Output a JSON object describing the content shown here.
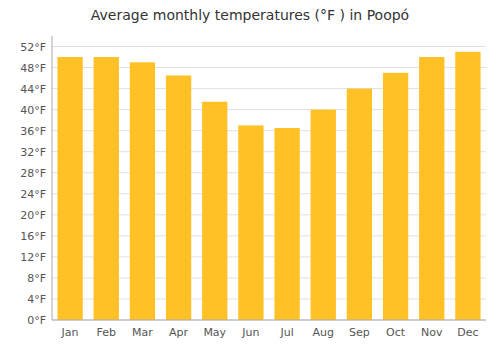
{
  "chart_data": {
    "type": "bar",
    "title": "Average monthly temperatures (°F ) in Poopó",
    "categories": [
      "Jan",
      "Feb",
      "Mar",
      "Apr",
      "May",
      "Jun",
      "Jul",
      "Aug",
      "Sep",
      "Oct",
      "Nov",
      "Dec"
    ],
    "values": [
      50.0,
      50.0,
      49.0,
      46.5,
      41.5,
      37.0,
      36.5,
      40.0,
      44.0,
      47.0,
      50.0,
      51.0
    ],
    "color": "#FFC125",
    "ylim": [
      0,
      54
    ],
    "yticks": [
      {
        "value": 0,
        "label": "0°F"
      },
      {
        "value": 4,
        "label": "4°F"
      },
      {
        "value": 8,
        "label": "8°F"
      },
      {
        "value": 12,
        "label": "12°F"
      },
      {
        "value": 16,
        "label": "16°F"
      },
      {
        "value": 20,
        "label": "20°F"
      },
      {
        "value": 24,
        "label": "24°F"
      },
      {
        "value": 28,
        "label": "28°F"
      },
      {
        "value": 32,
        "label": "32°F"
      },
      {
        "value": 36,
        "label": "36°F"
      },
      {
        "value": 40,
        "label": "40°F"
      },
      {
        "value": 44,
        "label": "44°F"
      },
      {
        "value": 48,
        "label": "48°F"
      },
      {
        "value": 52,
        "label": "52°F"
      }
    ],
    "grid": true
  }
}
